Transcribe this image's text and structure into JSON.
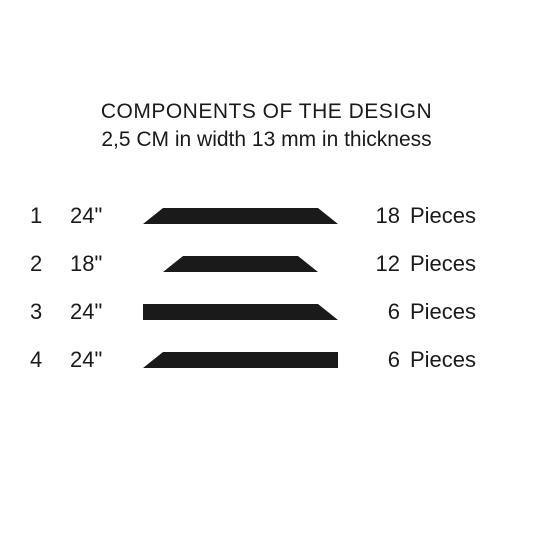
{
  "title": "COMPONENTS OF THE DESIGN",
  "subtitle": "2,5 CM in width 13 mm in thickness",
  "pieces_word": "Pieces",
  "shape_fill": "#1a1a1a",
  "text_color": "#1a1a1a",
  "background_color": "#ffffff",
  "rows": [
    {
      "index": "1",
      "length": "24\"",
      "pieces": "18",
      "shape": "both-angled",
      "shape_width": 195,
      "shape_height": 16,
      "skew": 20
    },
    {
      "index": "2",
      "length": "18\"",
      "pieces": "12",
      "shape": "both-angled",
      "shape_width": 155,
      "shape_height": 16,
      "skew": 20
    },
    {
      "index": "3",
      "length": "24\"",
      "pieces": "6",
      "shape": "right-angled",
      "shape_width": 195,
      "shape_height": 16,
      "skew": 20
    },
    {
      "index": "4",
      "length": "24\"",
      "pieces": "6",
      "shape": "left-angled",
      "shape_width": 195,
      "shape_height": 16,
      "skew": 20
    }
  ]
}
